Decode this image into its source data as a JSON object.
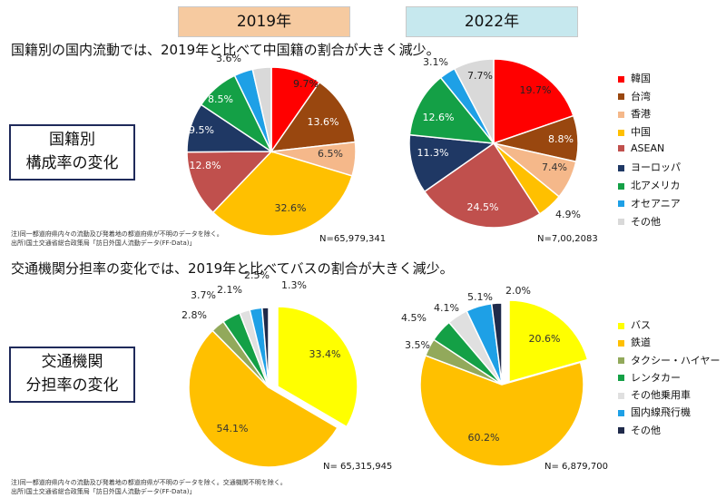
{
  "years": [
    "2019年",
    "2022年"
  ],
  "section1": {
    "headline": "国籍別の国内流動では、2019年と比べて中国籍の割合が大きく減少。",
    "side_title": [
      "国籍別",
      "構成率の変化"
    ],
    "notes": [
      "注)同一都道府県内々の流動及び発着地の都道府県が不明のデータを除く。",
      "出所)国土交通省総合政策局「訪日外国人流動データ(FF-Data)」"
    ]
  },
  "section2": {
    "headline": "交通機関分担率の変化では、2019年と比べてバスの割合が大きく減少。",
    "side_title": [
      "交通機関",
      "分担率の変化"
    ],
    "notes": [
      "注)同一都道府県内々の流動及び発着地の都道府県が不明のデータを除く。交通機関不明を除く。",
      "出所)国土交通省総合政策局「訪日外国人流動データ(FF-Data)」"
    ]
  },
  "chart_data": [
    {
      "type": "pie",
      "categories": [
        "韓国",
        "台湾",
        "香港",
        "中国",
        "ASEAN",
        "ヨーロッパ",
        "北アメリカ",
        "オセアニア",
        "その他"
      ],
      "values": [
        9.7,
        13.6,
        6.5,
        32.6,
        12.8,
        9.5,
        8.5,
        3.6,
        3.6
      ],
      "labels": [
        "9.7%",
        "13.6%",
        "6.5%",
        "32.6%",
        "12.8%",
        "9.5%",
        "8.5%",
        "",
        "3.6%"
      ],
      "colors": [
        "#ff0000",
        "#99470f",
        "#f5b88a",
        "#ffc000",
        "#c0504d",
        "#1f3864",
        "#14a046",
        "#1ea0e6",
        "#d9d9d9"
      ],
      "n_label": "N=65,979,341"
    },
    {
      "type": "pie",
      "categories": [
        "韓国",
        "台湾",
        "香港",
        "中国",
        "ASEAN",
        "ヨーロッパ",
        "北アメリカ",
        "オセアニア",
        "その他"
      ],
      "values": [
        19.7,
        8.8,
        7.4,
        4.9,
        24.5,
        11.3,
        12.6,
        3.1,
        7.7
      ],
      "labels": [
        "19.7%",
        "8.8%",
        "7.4%",
        "4.9%",
        "24.5%",
        "11.3%",
        "12.6%",
        "3.1%",
        "7.7%"
      ],
      "colors": [
        "#ff0000",
        "#99470f",
        "#f5b88a",
        "#ffc000",
        "#c0504d",
        "#1f3864",
        "#14a046",
        "#1ea0e6",
        "#d9d9d9"
      ],
      "n_label": "N=7,00,2083"
    },
    {
      "type": "pie",
      "categories": [
        "バス",
        "鉄道",
        "タクシー・ハイヤー",
        "レンタカー",
        "その他乗用車",
        "国内線飛行機",
        "その他"
      ],
      "values": [
        33.4,
        54.1,
        2.8,
        3.7,
        2.1,
        2.5,
        1.3
      ],
      "labels": [
        "33.4%",
        "54.1%",
        "2.8%",
        "3.7%",
        "2.1%",
        "2.5%",
        "1.3%"
      ],
      "colors": [
        "#ffff00",
        "#ffc000",
        "#92a95b",
        "#14a046",
        "#e0e0e0",
        "#1ea0e6",
        "#1f2a4a"
      ],
      "n_label": "N= 65,315,945"
    },
    {
      "type": "pie",
      "categories": [
        "バス",
        "鉄道",
        "タクシー・ハイヤー",
        "レンタカー",
        "その他乗用車",
        "国内線飛行機",
        "その他"
      ],
      "values": [
        20.6,
        60.2,
        3.5,
        4.5,
        4.1,
        5.1,
        2.0
      ],
      "labels": [
        "20.6%",
        "60.2%",
        "3.5%",
        "4.5%",
        "4.1%",
        "5.1%",
        "2.0%"
      ],
      "colors": [
        "#ffff00",
        "#ffc000",
        "#92a95b",
        "#14a046",
        "#e0e0e0",
        "#1ea0e6",
        "#1f2a4a"
      ],
      "n_label": "N= 6,879,700"
    }
  ]
}
